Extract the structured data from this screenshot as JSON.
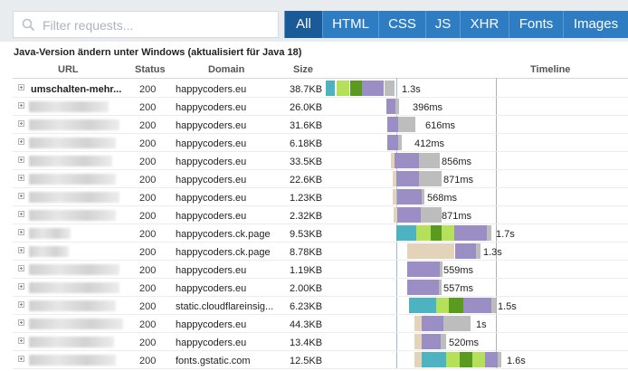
{
  "filter": {
    "placeholder": "Filter requests..."
  },
  "tabs": [
    {
      "label": "All",
      "active": true
    },
    {
      "label": "HTML"
    },
    {
      "label": "CSS"
    },
    {
      "label": "JS"
    },
    {
      "label": "XHR"
    },
    {
      "label": "Fonts"
    },
    {
      "label": "Images"
    }
  ],
  "page_title": "Java-Version ändern unter Windows (aktualisiert für Java 18)",
  "columns": {
    "url": "URL",
    "status": "Status",
    "domain": "Domain",
    "size": "Size",
    "timeline": "Timeline"
  },
  "colors": {
    "wait": "#4db3c0",
    "send": "#b5e05a",
    "dark_green": "#5a9a1e",
    "receive": "#9b8ec4",
    "blocked": "#bdbdbd",
    "dns": "#e3d3b8",
    "tab": "#2e7dc3",
    "tab_active": "#1a5a96"
  },
  "rows": [
    {
      "url": "umschalten-mehr...",
      "status": "200",
      "domain": "happycoders.eu",
      "size": "38.7KB",
      "time": "1.3s"
    },
    {
      "status": "200",
      "domain": "happycoders.eu",
      "size": "26.0KB",
      "time": "396ms"
    },
    {
      "status": "200",
      "domain": "happycoders.eu",
      "size": "31.6KB",
      "time": "616ms"
    },
    {
      "status": "200",
      "domain": "happycoders.eu",
      "size": "6.18KB",
      "time": "412ms"
    },
    {
      "status": "200",
      "domain": "happycoders.eu",
      "size": "33.5KB",
      "time": "856ms"
    },
    {
      "status": "200",
      "domain": "happycoders.eu",
      "size": "22.6KB",
      "time": "871ms"
    },
    {
      "status": "200",
      "domain": "happycoders.eu",
      "size": "1.23KB",
      "time": "568ms"
    },
    {
      "status": "200",
      "domain": "happycoders.eu",
      "size": "2.32KB",
      "time": "871ms"
    },
    {
      "status": "200",
      "domain": "happycoders.ck.page",
      "size": "9.53KB",
      "time": "1.7s"
    },
    {
      "status": "200",
      "domain": "happycoders.ck.page",
      "size": "8.78KB",
      "time": "1.3s"
    },
    {
      "status": "200",
      "domain": "happycoders.eu",
      "size": "1.19KB",
      "time": "559ms"
    },
    {
      "status": "200",
      "domain": "happycoders.eu",
      "size": "2.00KB",
      "time": "557ms"
    },
    {
      "status": "200",
      "domain": "static.cloudflareinsig...",
      "size": "6.23KB",
      "time": "1.5s"
    },
    {
      "status": "200",
      "domain": "happycoders.eu",
      "size": "44.3KB",
      "time": "1s"
    },
    {
      "status": "200",
      "domain": "happycoders.eu",
      "size": "13.4KB",
      "time": "520ms"
    },
    {
      "status": "200",
      "domain": "fonts.gstatic.com",
      "size": "12.5KB",
      "time": "1.6s"
    }
  ]
}
